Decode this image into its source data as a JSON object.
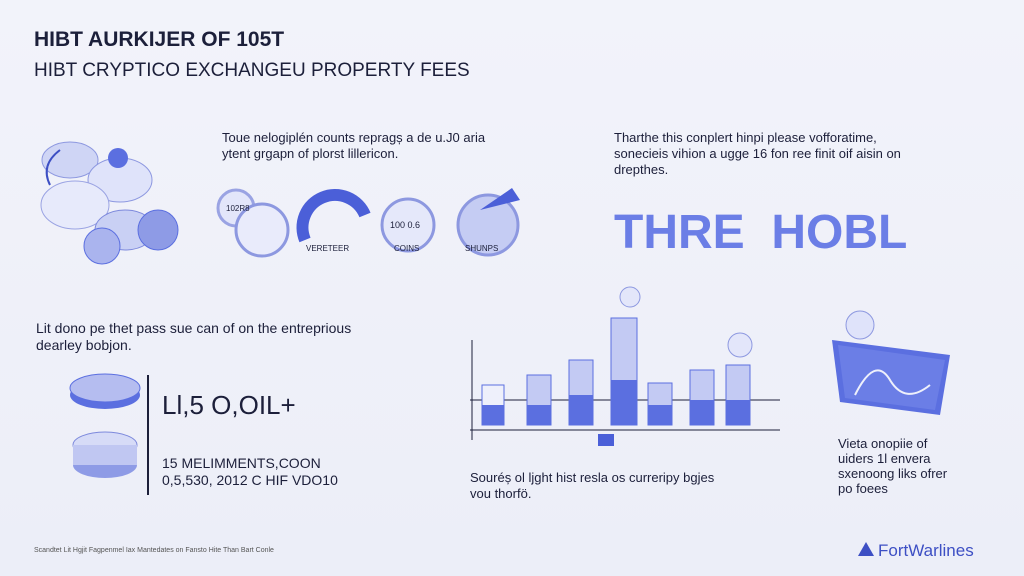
{
  "header": {
    "title": "HIBT AURKIJER OF 105T",
    "subtitle": "HIBT CRYPTICO EXCHANGEU PROPERTY FEES"
  },
  "intro_left": {
    "lines": [
      "Toue nelogiplén counts repragș a de u.J0 aria",
      "ytent grgapn of plorst lillericon."
    ]
  },
  "intro_right": {
    "lines": [
      "Tharthe this conplert hinpi please vofforatime,",
      "sonecieis vihion a ugge 16 fon ree finit oif aisin on",
      "drepthes."
    ]
  },
  "big_text": "THRE  HOBL",
  "icons": {
    "labels": [
      "102R8",
      "VERETEER",
      "100 0.6",
      "COINS",
      "SHUNPS"
    ]
  },
  "middle_left": {
    "lines": [
      "Lit dono pe thet pass sue can of on the entreprious",
      "dearley bobjon."
    ]
  },
  "stats": {
    "big": "Ll,5 O,OIL+",
    "line1": "15 MELIMMENTS,COON",
    "line2": "0,5,530,  2012 C HIF VDO10"
  },
  "chart_caption": {
    "lines": [
      "Souréș ol ljght hist resla os curreripy bgjes",
      "vou thorfö."
    ]
  },
  "right_caption": {
    "lines": [
      "Vieta onopiie of",
      "uiders 1l envera",
      "sxenoong liks ofrer",
      "po foees"
    ]
  },
  "footer": {
    "note": "Scandtet Lit Hgjit Fagpenmel Iax Mantedates on Fansto Hite Than Bart Conle",
    "brand": "FortWarlines"
  }
}
